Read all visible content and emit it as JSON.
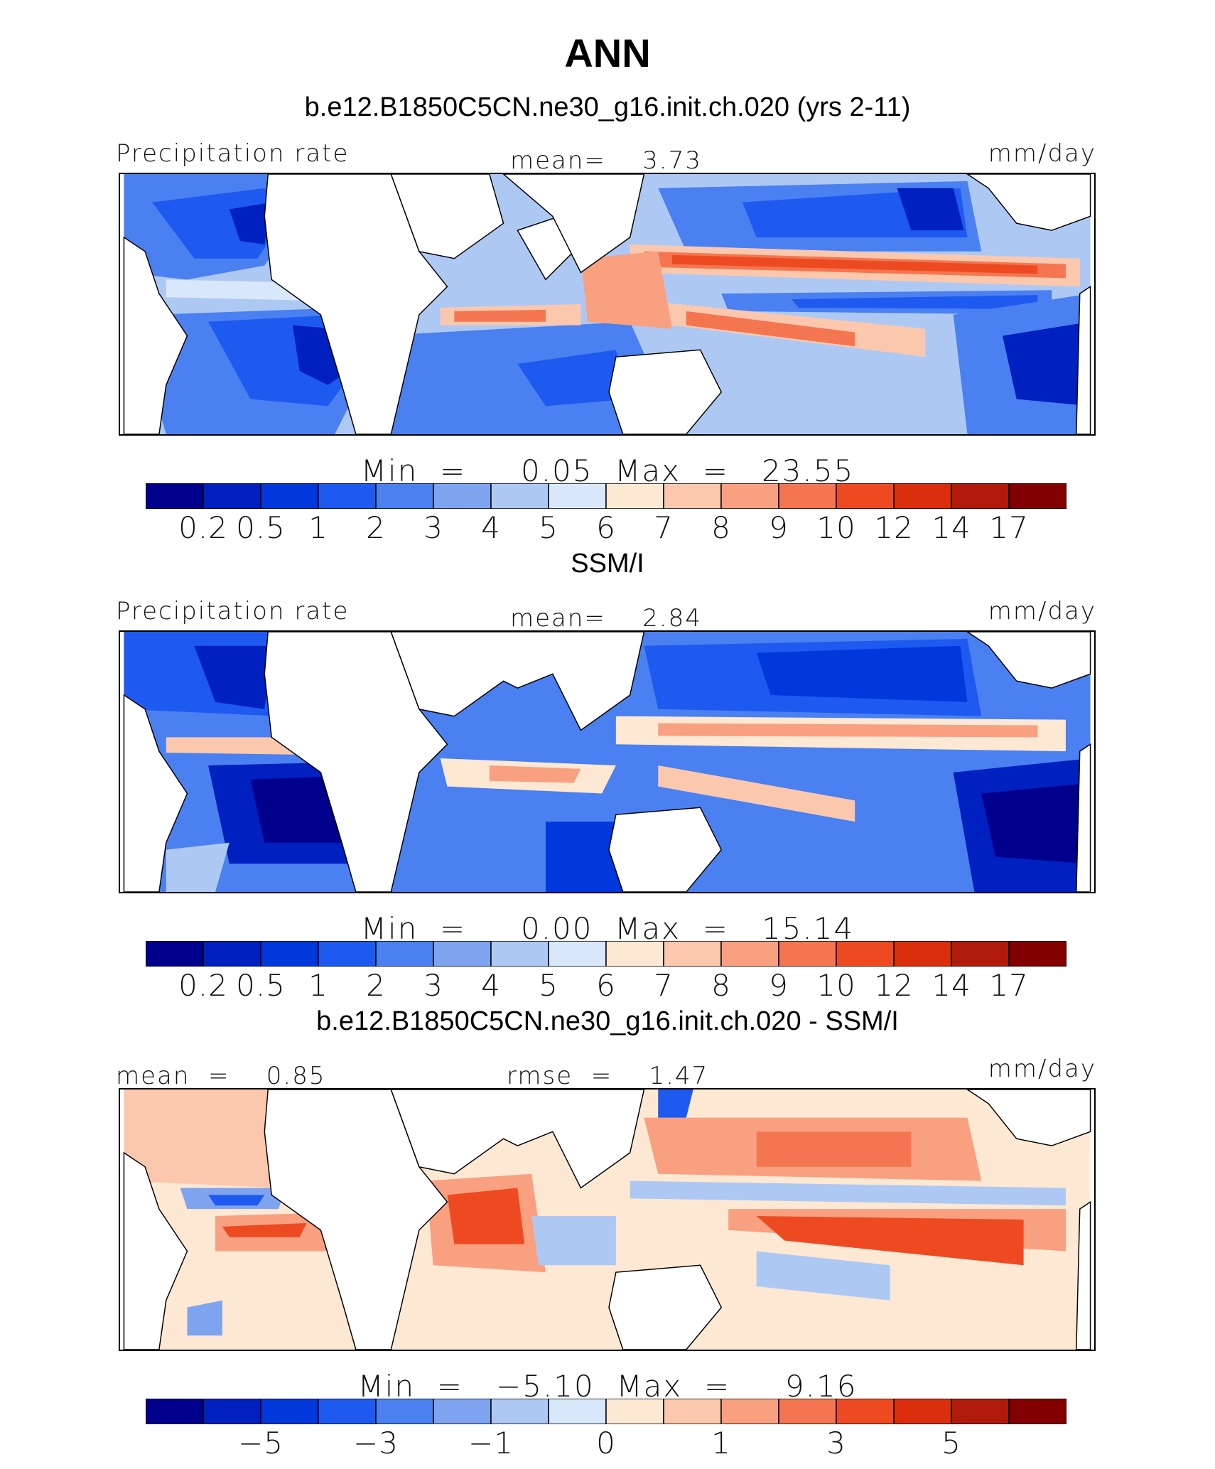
{
  "figure": {
    "title": "ANN",
    "case_title": "b.e12.B1850C5CN.ne30_g16.init.ch.020 (yrs 2-11)"
  },
  "panels": [
    {
      "id": "model",
      "subtitle": "",
      "left_label": "Precipitation rate",
      "center_label": "mean=    3.73",
      "right_label": "mm/day",
      "stats": "Min  =     0.05  Max  =   23.55",
      "colorbar_ticks": [
        "0.2",
        "0.5",
        "1",
        "2",
        "3",
        "4",
        "5",
        "6",
        "7",
        "8",
        "9",
        "10",
        "12",
        "14",
        "17"
      ]
    },
    {
      "id": "obs",
      "subtitle": "SSM/I",
      "left_label": "Precipitation rate",
      "center_label": "mean=    2.84",
      "right_label": "mm/day",
      "stats": "Min  =     0.00  Max  =   15.14",
      "colorbar_ticks": [
        "0.2",
        "0.5",
        "1",
        "2",
        "3",
        "4",
        "5",
        "6",
        "7",
        "8",
        "9",
        "10",
        "12",
        "14",
        "17"
      ]
    },
    {
      "id": "diff",
      "subtitle": "b.e12.B1850C5CN.ne30_g16.init.ch.020 - SSM/I",
      "left_label": "mean  =    0.85",
      "center_label": "rmse  =    1.47",
      "right_label": "mm/day",
      "stats": "Min  =   −5.10  Max  =     9.16",
      "colorbar_ticks": [
        "−5",
        "−3",
        "−1",
        "0",
        "1",
        "3",
        "5"
      ]
    }
  ],
  "chart_data": [
    {
      "type": "heatmap",
      "title": "b.e12.B1850C5CN.ne30_g16.init.ch.020 (yrs 2-11)",
      "variable": "Precipitation rate",
      "units": "mm/day",
      "mean": 3.73,
      "min": 0.05,
      "max": 23.55,
      "levels": [
        0.2,
        0.5,
        1,
        2,
        3,
        4,
        5,
        6,
        7,
        8,
        9,
        10,
        12,
        14,
        17
      ]
    },
    {
      "type": "heatmap",
      "title": "SSM/I",
      "variable": "Precipitation rate",
      "units": "mm/day",
      "mean": 2.84,
      "min": 0.0,
      "max": 15.14,
      "levels": [
        0.2,
        0.5,
        1,
        2,
        3,
        4,
        5,
        6,
        7,
        8,
        9,
        10,
        12,
        14,
        17
      ]
    },
    {
      "type": "heatmap",
      "title": "b.e12.B1850C5CN.ne30_g16.init.ch.020 - SSM/I",
      "units": "mm/day",
      "mean": 0.85,
      "rmse": 1.47,
      "min": -5.1,
      "max": 9.16,
      "levels": [
        -5,
        -3,
        -1,
        0,
        1,
        3,
        5
      ]
    }
  ],
  "palette": [
    "#00008c",
    "#0020c0",
    "#0038dc",
    "#1e5af0",
    "#4a80f0",
    "#7ea4f0",
    "#aec8f4",
    "#d8e8fa",
    "#fde8d4",
    "#fbc8ae",
    "#f8a080",
    "#f47650",
    "#ee4a22",
    "#da2e0c",
    "#b01a0a",
    "#820000"
  ]
}
